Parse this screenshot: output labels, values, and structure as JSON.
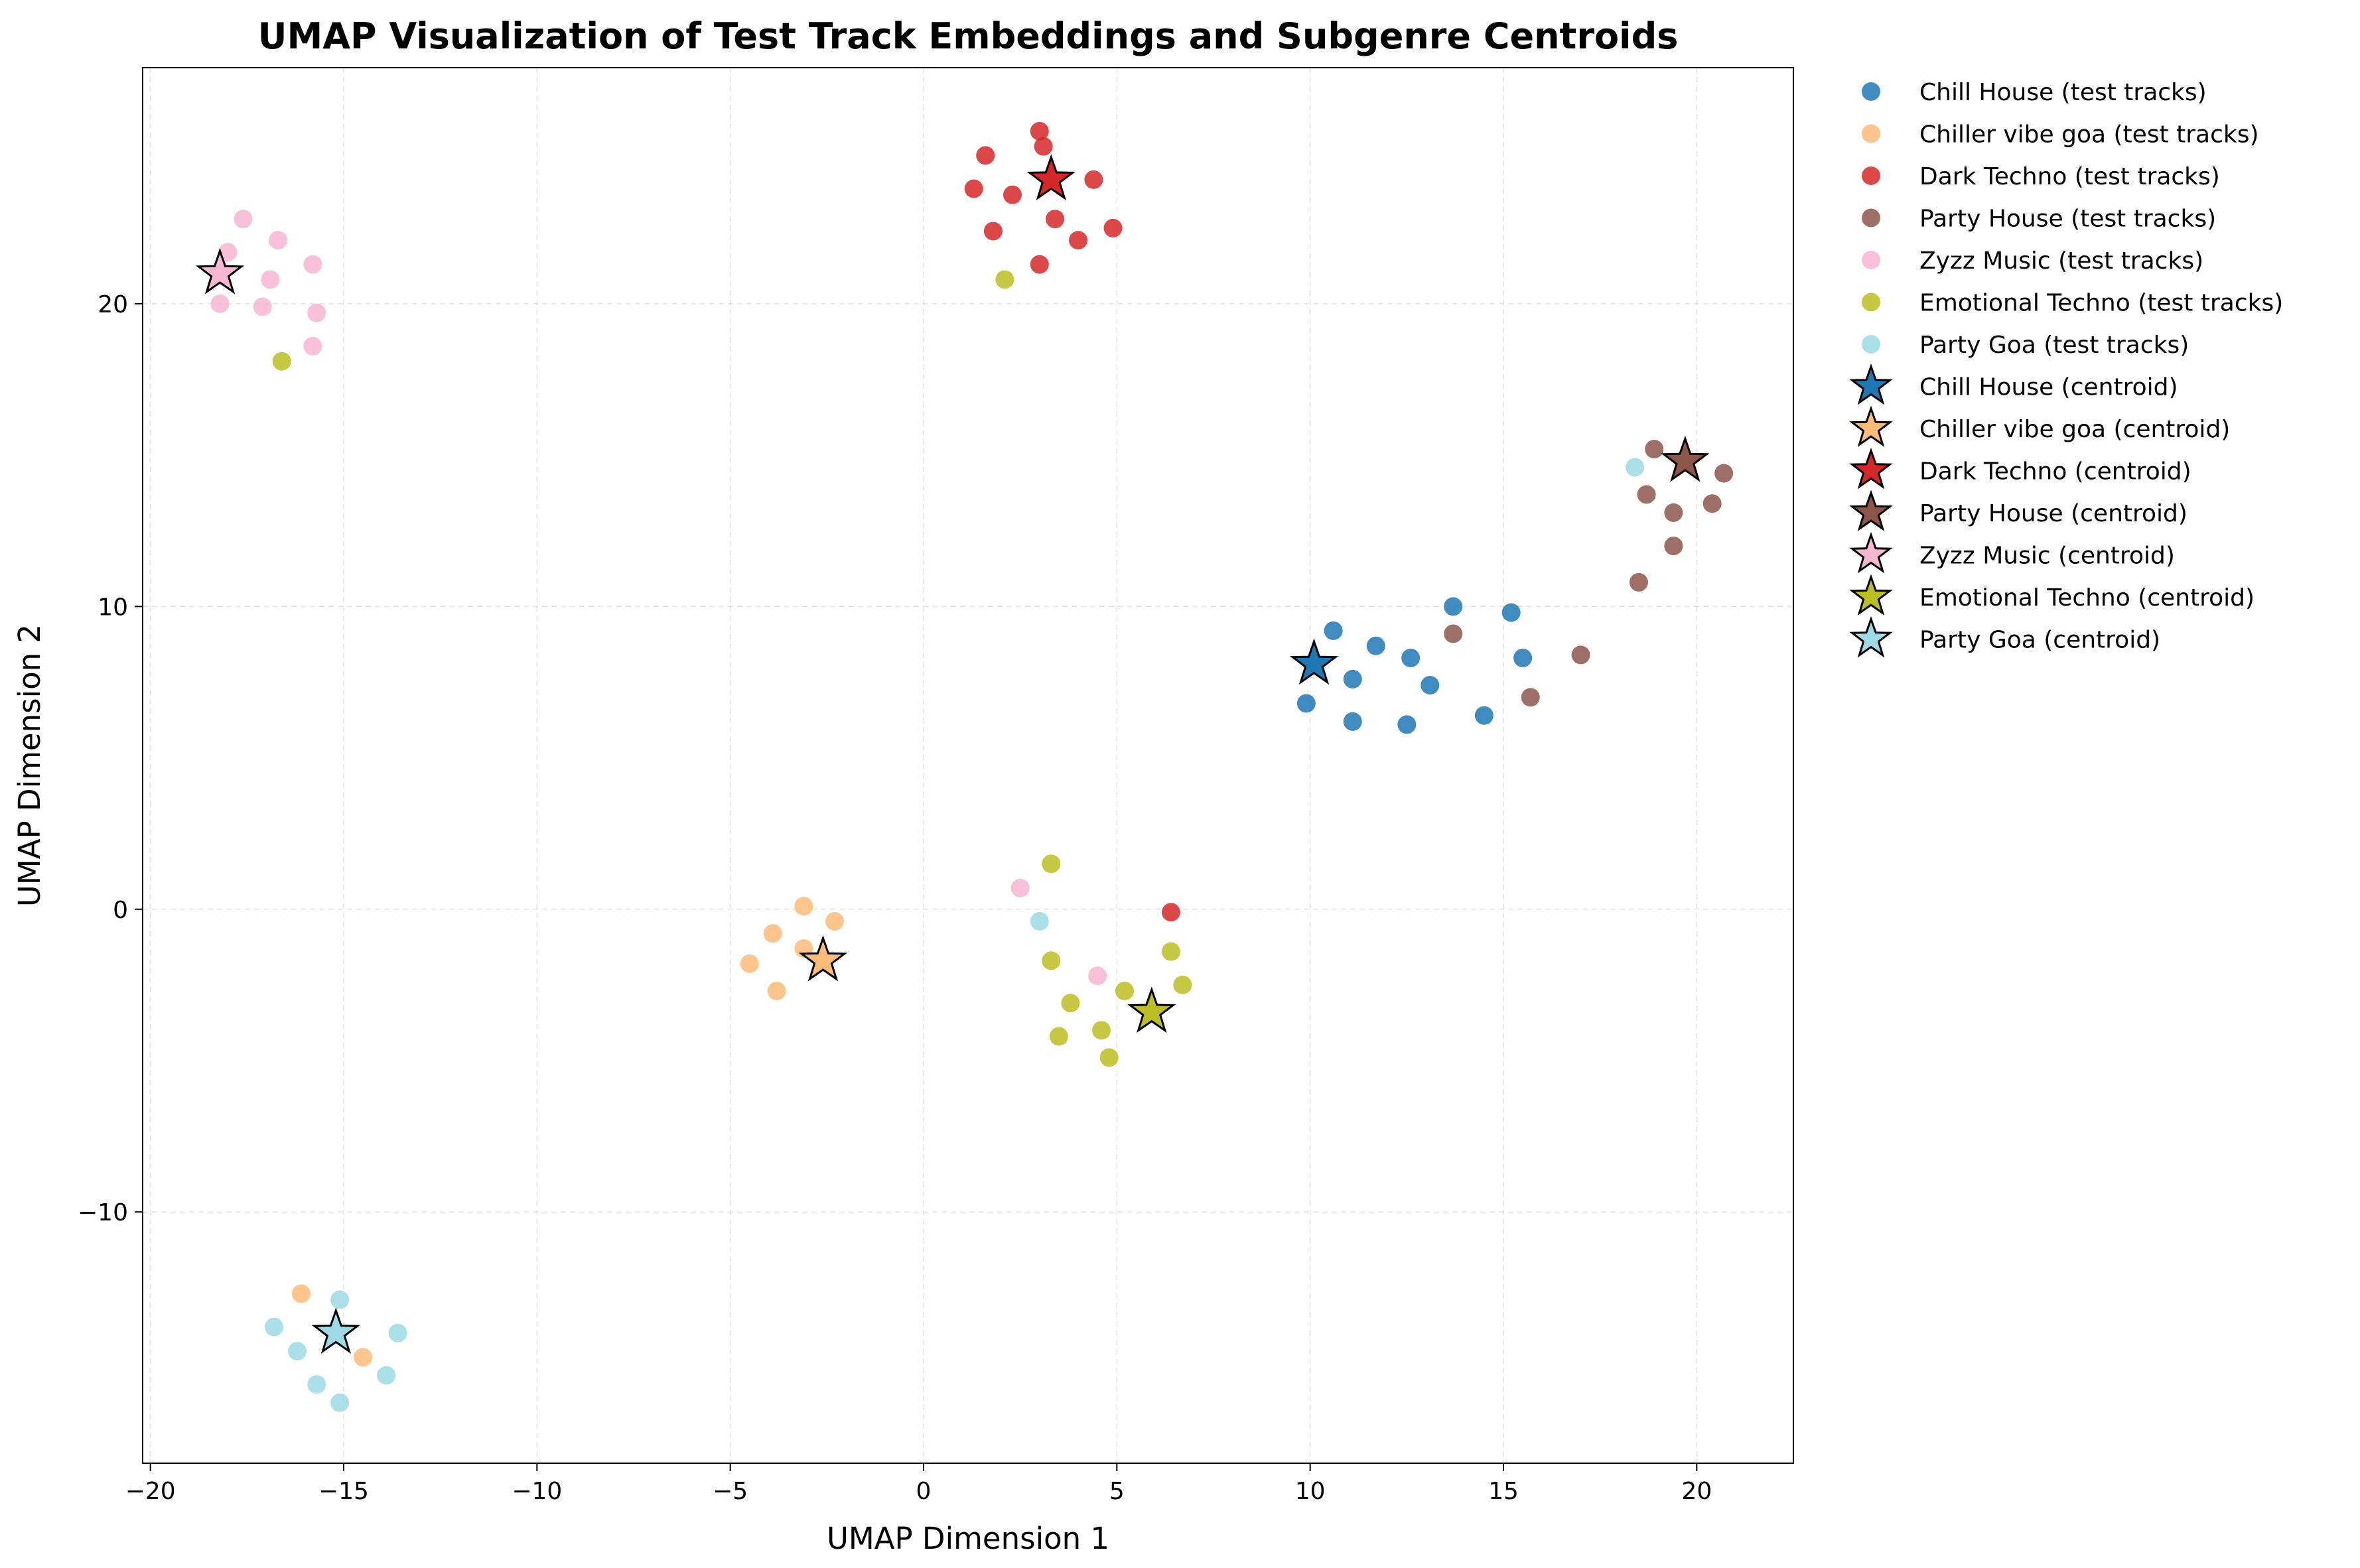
{
  "chart_data": {
    "type": "scatter",
    "title": "UMAP Visualization of Test Track Embeddings and Subgenre Centroids",
    "xlabel": "UMAP Dimension 1",
    "ylabel": "UMAP Dimension 2",
    "xlim": [
      -20.2,
      22.5
    ],
    "ylim": [
      -18.3,
      27.8
    ],
    "xticks": [
      -20,
      -15,
      -10,
      -5,
      0,
      5,
      10,
      15,
      20
    ],
    "xtick_labels": [
      "−20",
      "−15",
      "−10",
      "−5",
      "0",
      "5",
      "10",
      "15",
      "20"
    ],
    "yticks": [
      -10,
      0,
      10,
      20
    ],
    "ytick_labels": [
      "−10",
      "0",
      "10",
      "20"
    ],
    "grid": true,
    "legend_position": "outside-right",
    "series": [
      {
        "name": "Chill House (test tracks)",
        "kind": "tracks",
        "color": "#1f77b4",
        "points": [
          [
            10.6,
            9.2
          ],
          [
            11.7,
            8.7
          ],
          [
            13.7,
            10.0
          ],
          [
            15.2,
            9.8
          ],
          [
            12.6,
            8.3
          ],
          [
            15.5,
            8.3
          ],
          [
            11.1,
            7.6
          ],
          [
            13.1,
            7.4
          ],
          [
            9.9,
            6.8
          ],
          [
            11.1,
            6.2
          ],
          [
            12.5,
            6.1
          ],
          [
            14.5,
            6.4
          ]
        ]
      },
      {
        "name": "Chiller vibe goa (test tracks)",
        "kind": "tracks",
        "color": "#ffbb78",
        "points": [
          [
            -3.1,
            0.1
          ],
          [
            -2.3,
            -0.4
          ],
          [
            -3.9,
            -0.8
          ],
          [
            -3.1,
            -1.3
          ],
          [
            -4.5,
            -1.8
          ],
          [
            -3.8,
            -2.7
          ],
          [
            -16.1,
            -12.7
          ],
          [
            -14.5,
            -14.8
          ]
        ]
      },
      {
        "name": "Dark Techno (test tracks)",
        "kind": "tracks",
        "color": "#d62728",
        "points": [
          [
            3.0,
            25.7
          ],
          [
            3.1,
            25.2
          ],
          [
            1.6,
            24.9
          ],
          [
            4.4,
            24.1
          ],
          [
            1.3,
            23.8
          ],
          [
            2.3,
            23.6
          ],
          [
            3.4,
            22.8
          ],
          [
            4.9,
            22.5
          ],
          [
            1.8,
            22.4
          ],
          [
            4.0,
            22.1
          ],
          [
            3.0,
            21.3
          ],
          [
            6.4,
            -0.1
          ]
        ]
      },
      {
        "name": "Party House (test tracks)",
        "kind": "tracks",
        "color": "#8c564b",
        "points": [
          [
            18.9,
            15.2
          ],
          [
            20.7,
            14.4
          ],
          [
            18.7,
            13.7
          ],
          [
            20.4,
            13.4
          ],
          [
            19.4,
            13.1
          ],
          [
            19.4,
            12.0
          ],
          [
            18.5,
            10.8
          ],
          [
            13.7,
            9.1
          ],
          [
            17.0,
            8.4
          ],
          [
            15.7,
            7.0
          ]
        ]
      },
      {
        "name": "Zyzz Music (test tracks)",
        "kind": "tracks",
        "color": "#f7b6d2",
        "points": [
          [
            -17.6,
            22.8
          ],
          [
            -16.7,
            22.1
          ],
          [
            -18.0,
            21.7
          ],
          [
            -15.8,
            21.3
          ],
          [
            -16.9,
            20.8
          ],
          [
            -18.2,
            20.0
          ],
          [
            -17.1,
            19.9
          ],
          [
            -15.7,
            19.7
          ],
          [
            -15.8,
            18.6
          ],
          [
            2.5,
            0.7
          ],
          [
            4.5,
            -2.2
          ]
        ]
      },
      {
        "name": "Emotional Techno (test tracks)",
        "kind": "tracks",
        "color": "#bcbd22",
        "points": [
          [
            2.1,
            20.8
          ],
          [
            -16.6,
            18.1
          ],
          [
            3.3,
            1.5
          ],
          [
            6.4,
            -1.4
          ],
          [
            3.3,
            -1.7
          ],
          [
            6.7,
            -2.5
          ],
          [
            5.2,
            -2.7
          ],
          [
            3.8,
            -3.1
          ],
          [
            4.6,
            -4.0
          ],
          [
            3.5,
            -4.2
          ],
          [
            4.8,
            -4.9
          ]
        ]
      },
      {
        "name": "Party Goa (test tracks)",
        "kind": "tracks",
        "color": "#9edae5",
        "points": [
          [
            18.4,
            14.6
          ],
          [
            3.0,
            -0.4
          ],
          [
            -15.1,
            -12.9
          ],
          [
            -16.8,
            -13.8
          ],
          [
            -13.6,
            -14.0
          ],
          [
            -16.2,
            -14.6
          ],
          [
            -13.9,
            -15.4
          ],
          [
            -15.7,
            -15.7
          ],
          [
            -15.1,
            -16.3
          ]
        ]
      },
      {
        "name": "Chill House (centroid)",
        "kind": "centroid",
        "color": "#1f77b4",
        "points": [
          [
            10.1,
            8.1
          ]
        ]
      },
      {
        "name": "Chiller vibe goa (centroid)",
        "kind": "centroid",
        "color": "#ffbb78",
        "points": [
          [
            -2.6,
            -1.7
          ]
        ]
      },
      {
        "name": "Dark Techno (centroid)",
        "kind": "centroid",
        "color": "#d62728",
        "points": [
          [
            3.3,
            24.1
          ]
        ]
      },
      {
        "name": "Party House (centroid)",
        "kind": "centroid",
        "color": "#8c564b",
        "points": [
          [
            19.7,
            14.8
          ]
        ]
      },
      {
        "name": "Zyzz Music (centroid)",
        "kind": "centroid",
        "color": "#f7b6d2",
        "points": [
          [
            -18.2,
            21.0
          ]
        ]
      },
      {
        "name": "Emotional Techno (centroid)",
        "kind": "centroid",
        "color": "#bcbd22",
        "points": [
          [
            5.9,
            -3.4
          ]
        ]
      },
      {
        "name": "Party Goa (centroid)",
        "kind": "centroid",
        "color": "#9edae5",
        "points": [
          [
            -15.2,
            -14.0
          ]
        ]
      }
    ]
  }
}
